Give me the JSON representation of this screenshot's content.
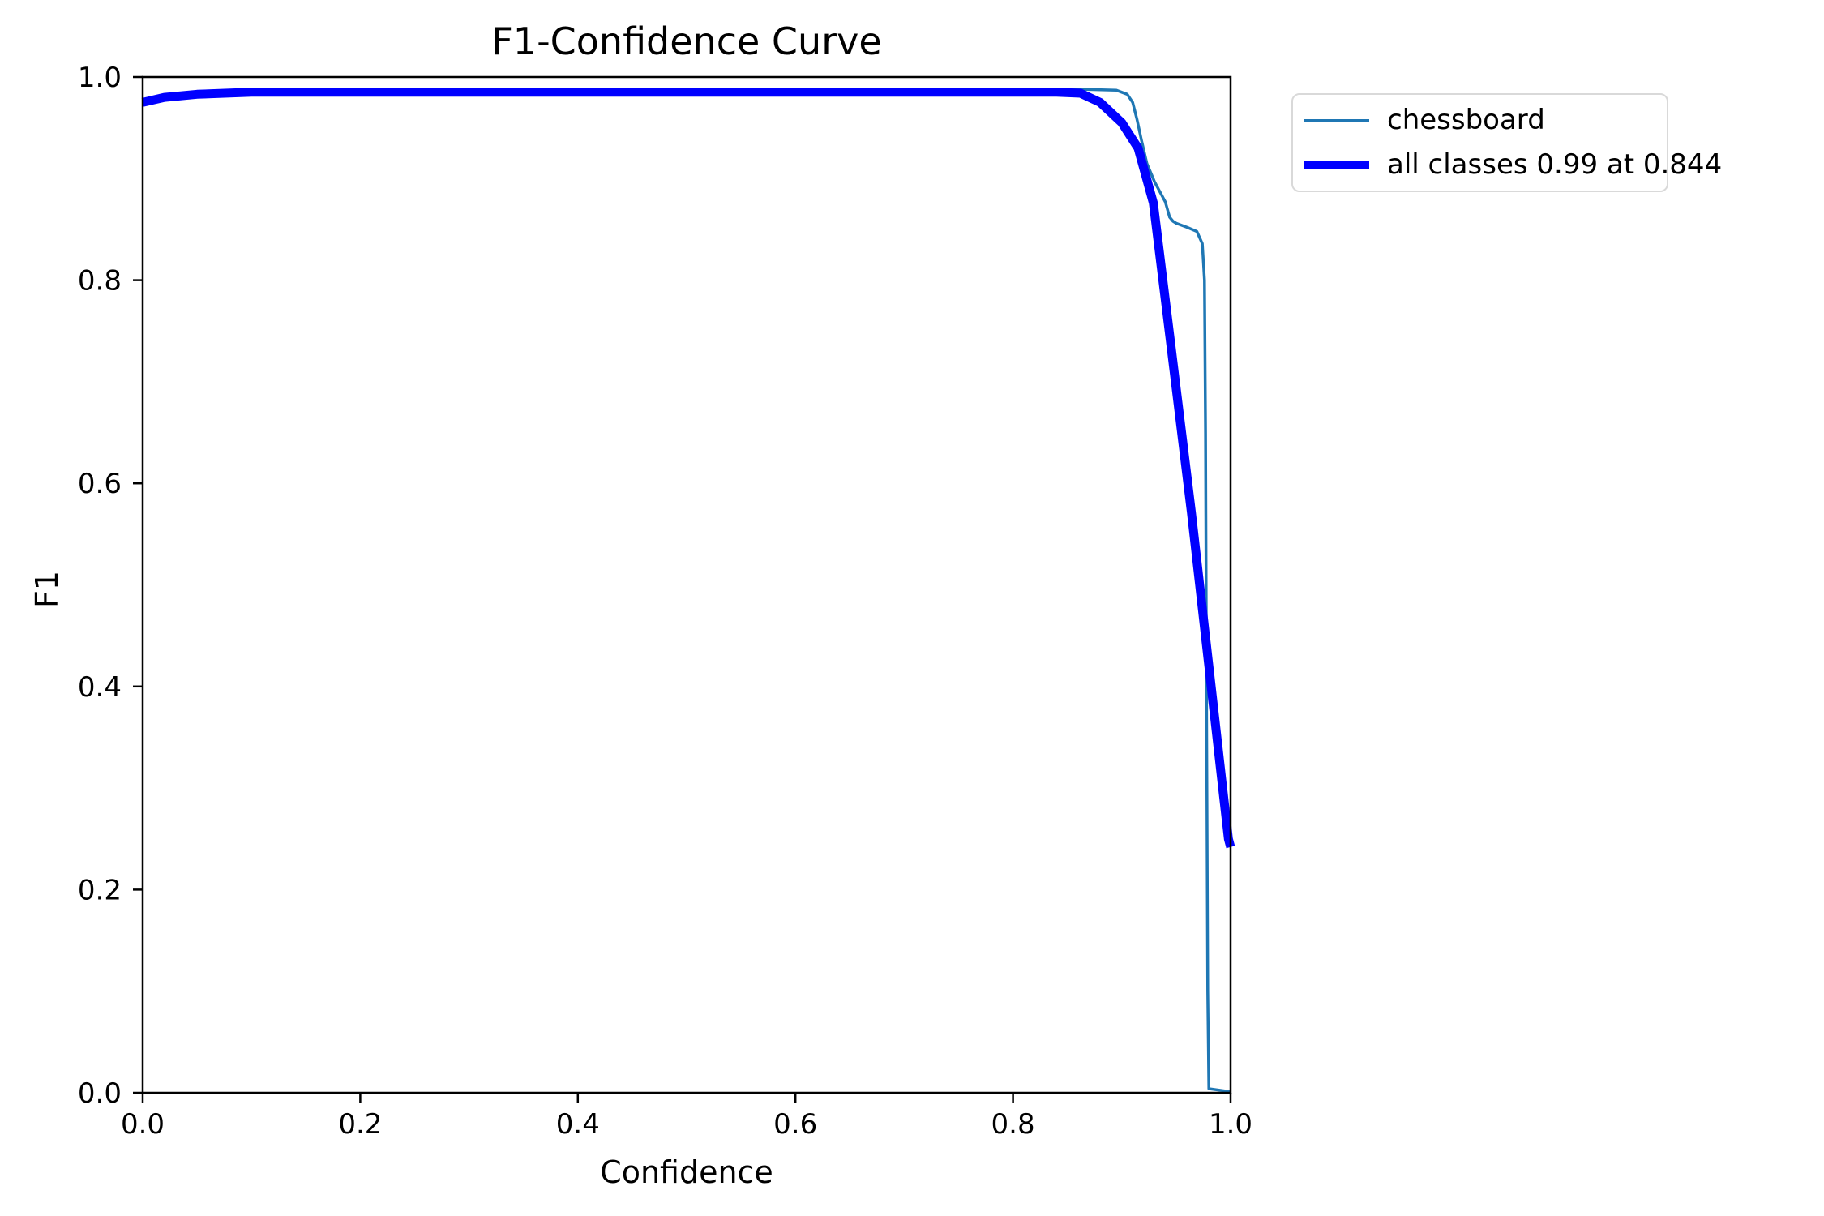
{
  "chart_data": {
    "type": "line",
    "title": "F1-Confidence Curve",
    "xlabel": "Confidence",
    "ylabel": "F1",
    "xlim": [
      0.0,
      1.0
    ],
    "ylim": [
      0.0,
      1.0
    ],
    "xticks": [
      "0.0",
      "0.2",
      "0.4",
      "0.6",
      "0.8",
      "1.0"
    ],
    "yticks": [
      "0.0",
      "0.2",
      "0.4",
      "0.6",
      "0.8",
      "1.0"
    ],
    "grid": false,
    "background": "#ffffff",
    "spine_color": "#000000",
    "legend": {
      "position": "upper-right-outside",
      "border_color": "#d9d9d9"
    },
    "series": [
      {
        "name": "chessboard",
        "color": "#1f77b4",
        "line_width": 3.5,
        "x": [
          0.0,
          0.02,
          0.05,
          0.1,
          0.2,
          0.4,
          0.6,
          0.8,
          0.86,
          0.895,
          0.905,
          0.91,
          0.914,
          0.918,
          0.923,
          0.93,
          0.94,
          0.944,
          0.947,
          0.95,
          0.96,
          0.969,
          0.974,
          0.976,
          0.977,
          0.978,
          0.979,
          0.98,
          1.0
        ],
        "y": [
          0.976,
          0.981,
          0.985,
          0.987,
          0.988,
          0.988,
          0.988,
          0.988,
          0.988,
          0.987,
          0.983,
          0.975,
          0.958,
          0.938,
          0.915,
          0.897,
          0.877,
          0.862,
          0.858,
          0.856,
          0.852,
          0.848,
          0.836,
          0.8,
          0.65,
          0.35,
          0.1,
          0.004,
          0.001
        ]
      },
      {
        "name": "all classes 0.99 at 0.844",
        "color": "#0000ff",
        "line_width": 11,
        "x": [
          0.0,
          0.02,
          0.05,
          0.1,
          0.2,
          0.3,
          0.4,
          0.5,
          0.6,
          0.7,
          0.8,
          0.84,
          0.862,
          0.88,
          0.9,
          0.915,
          0.929,
          0.945,
          0.964,
          0.98,
          0.998,
          1.0
        ],
        "y": [
          0.975,
          0.98,
          0.983,
          0.985,
          0.985,
          0.985,
          0.985,
          0.985,
          0.985,
          0.985,
          0.985,
          0.985,
          0.984,
          0.975,
          0.955,
          0.93,
          0.876,
          0.737,
          0.571,
          0.42,
          0.25,
          0.242
        ]
      }
    ]
  }
}
